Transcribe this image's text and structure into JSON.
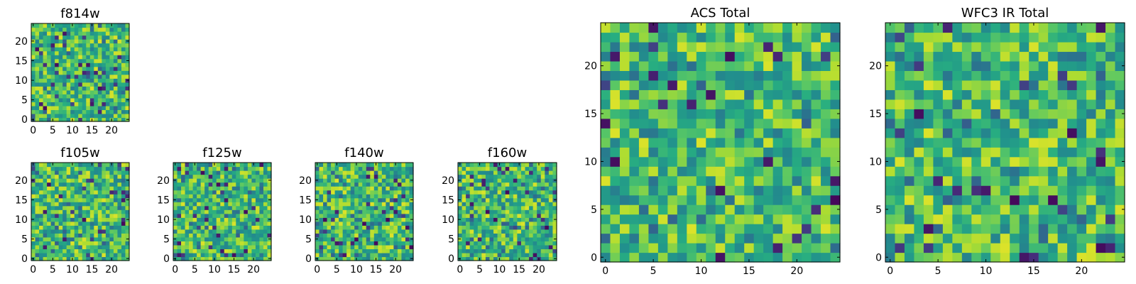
{
  "chart_data": [
    {
      "type": "heatmap",
      "title": "f814w",
      "colormap": "viridis",
      "grid_size": 25,
      "xlim": [
        -0.5,
        24.5
      ],
      "ylim": [
        -0.5,
        24.5
      ],
      "xticks": [
        0,
        5,
        10,
        15,
        20
      ],
      "yticks": [
        0,
        5,
        10,
        15,
        20
      ],
      "xlabel": "",
      "ylabel": "",
      "seed": 814
    },
    {
      "type": "heatmap",
      "title": "f105w",
      "colormap": "viridis",
      "grid_size": 25,
      "xlim": [
        -0.5,
        24.5
      ],
      "ylim": [
        -0.5,
        24.5
      ],
      "xticks": [
        0,
        5,
        10,
        15,
        20
      ],
      "yticks": [
        0,
        5,
        10,
        15,
        20
      ],
      "xlabel": "",
      "ylabel": "",
      "seed": 105
    },
    {
      "type": "heatmap",
      "title": "f125w",
      "colormap": "viridis",
      "grid_size": 25,
      "xlim": [
        -0.5,
        24.5
      ],
      "ylim": [
        -0.5,
        24.5
      ],
      "xticks": [
        0,
        5,
        10,
        15,
        20
      ],
      "yticks": [
        0,
        5,
        10,
        15,
        20
      ],
      "xlabel": "",
      "ylabel": "",
      "seed": 125
    },
    {
      "type": "heatmap",
      "title": "f140w",
      "colormap": "viridis",
      "grid_size": 25,
      "xlim": [
        -0.5,
        24.5
      ],
      "ylim": [
        -0.5,
        24.5
      ],
      "xticks": [
        0,
        5,
        10,
        15,
        20
      ],
      "yticks": [
        0,
        5,
        10,
        15,
        20
      ],
      "xlabel": "",
      "ylabel": "",
      "seed": 140
    },
    {
      "type": "heatmap",
      "title": "f160w",
      "colormap": "viridis",
      "grid_size": 25,
      "xlim": [
        -0.5,
        24.5
      ],
      "ylim": [
        -0.5,
        24.5
      ],
      "xticks": [
        0,
        5,
        10,
        15,
        20
      ],
      "yticks": [
        0,
        5,
        10,
        15,
        20
      ],
      "xlabel": "",
      "ylabel": "",
      "seed": 160
    },
    {
      "type": "heatmap",
      "title": "ACS Total",
      "colormap": "viridis",
      "grid_size": 25,
      "xlim": [
        -0.5,
        24.5
      ],
      "ylim": [
        -0.5,
        24.5
      ],
      "xticks": [
        0,
        5,
        10,
        15,
        20
      ],
      "yticks": [
        0,
        5,
        10,
        15,
        20
      ],
      "xlabel": "",
      "ylabel": "",
      "seed": 2024
    },
    {
      "type": "heatmap",
      "title": "WFC3 IR Total",
      "colormap": "viridis",
      "grid_size": 25,
      "xlim": [
        -0.5,
        24.5
      ],
      "ylim": [
        -0.5,
        24.5
      ],
      "xticks": [
        0,
        5,
        10,
        15,
        20
      ],
      "yticks": [
        0,
        5,
        10,
        15,
        20
      ],
      "xlabel": "",
      "ylabel": "",
      "seed": 3030
    }
  ]
}
